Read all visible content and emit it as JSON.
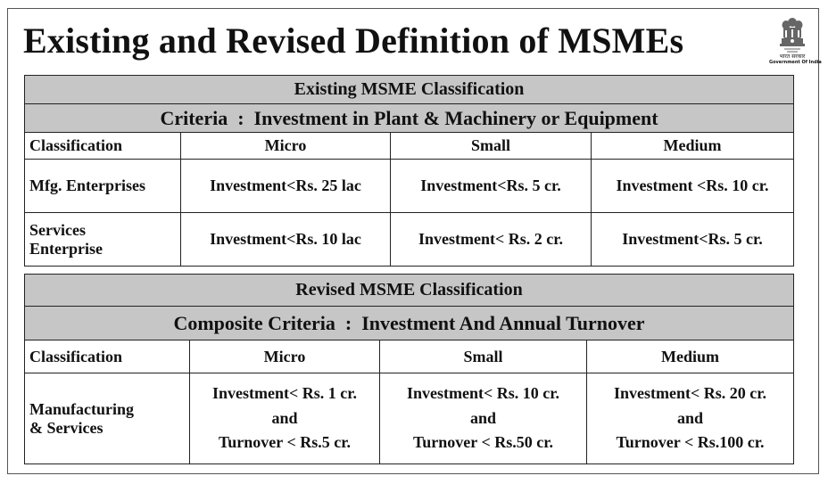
{
  "title": "Existing and Revised Definition of MSMEs",
  "emblem": {
    "hindi_text": "भारत सरकार",
    "caption": "Government Of India"
  },
  "existing": {
    "heading": "Existing MSME Classification",
    "criteria": "Criteria  :  Investment in Plant & Machinery or Equipment",
    "columns": [
      "Classification",
      "Micro",
      "Small",
      "Medium"
    ],
    "rows": [
      {
        "label": "Mfg. Enterprises",
        "cells": [
          "Investment<Rs. 25 lac",
          "Investment<Rs. 5 cr.",
          "Investment <Rs. 10 cr."
        ]
      },
      {
        "label_line1": "Services",
        "label_line2": "Enterprise",
        "cells": [
          "Investment<Rs. 10 lac",
          "Investment< Rs. 2 cr.",
          "Investment<Rs. 5 cr."
        ]
      }
    ]
  },
  "revised": {
    "heading": "Revised MSME Classification",
    "criteria": "Composite Criteria  :  Investment And Annual Turnover",
    "columns": [
      "Classification",
      "Micro",
      "Small",
      "Medium"
    ],
    "row": {
      "label_line1": "Manufacturing",
      "label_line2": "& Services",
      "cells": [
        {
          "investment": "Investment< Rs. 1 cr.",
          "and": "and",
          "turnover": "Turnover < Rs.5 cr."
        },
        {
          "investment": "Investment< Rs. 10 cr.",
          "and": "and",
          "turnover": "Turnover < Rs.50 cr."
        },
        {
          "investment": "Investment< Rs. 20 cr.",
          "and": "and",
          "turnover": "Turnover < Rs.100 cr."
        }
      ]
    }
  }
}
